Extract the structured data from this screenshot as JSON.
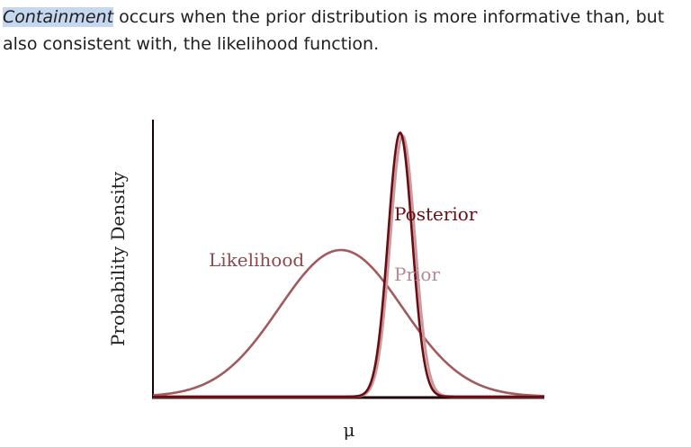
{
  "paragraph": {
    "highlighted_term": "Containment",
    "rest_text": " occurs when the prior distribution is more informative than, but also consistent with, the likelihood function."
  },
  "chart_data": {
    "type": "line",
    "title": "",
    "xlabel": "μ",
    "ylabel": "Probability Density",
    "grid": false,
    "series": [
      {
        "name": "Likelihood",
        "mean": 0.0,
        "sd": 1.0,
        "peak_density": 1.0,
        "color": "#a15a5e"
      },
      {
        "name": "Prior",
        "mean": 1.0,
        "sd": 0.2,
        "peak_density": 1.78,
        "color": "#c89b9e"
      },
      {
        "name": "Posterior",
        "mean": 0.96,
        "sd": 0.196,
        "peak_density": 1.8,
        "color": "#6e0a12"
      }
    ],
    "colors": {
      "axis": "#1a0000",
      "label_likelihood": "#8a4a4e",
      "label_prior": "#b58a8d",
      "label_posterior": "#6e0a12"
    }
  }
}
